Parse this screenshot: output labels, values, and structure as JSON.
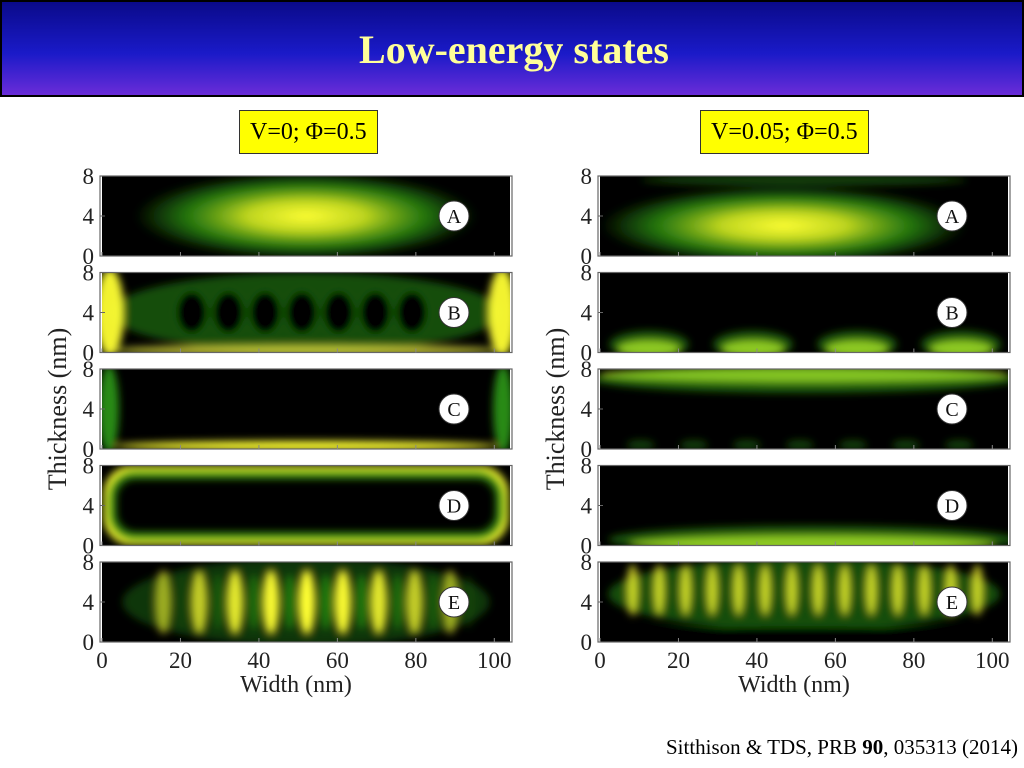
{
  "header": {
    "title": "Low-energy states"
  },
  "columns": [
    {
      "condition_label": "V=0; Φ=0.5",
      "y_axis_label": "Thickness (nm)",
      "x_axis_label": "Width (nm)",
      "x_ticks": [
        "0",
        "20",
        "40",
        "60",
        "80",
        "100"
      ],
      "y_ticks": [
        "0",
        "4",
        "8"
      ],
      "panels": [
        {
          "label": "A",
          "pattern": "central-blob"
        },
        {
          "label": "B",
          "pattern": "edges-with-lobes"
        },
        {
          "label": "C",
          "pattern": "bottom-line"
        },
        {
          "label": "D",
          "pattern": "ring-perimeter"
        },
        {
          "label": "E",
          "pattern": "vertical-stripes"
        }
      ]
    },
    {
      "condition_label": "V=0.05; Φ=0.5",
      "y_axis_label": "Thickness (nm)",
      "x_axis_label": "Width (nm)",
      "x_ticks": [
        "0",
        "20",
        "40",
        "60",
        "80",
        "100"
      ],
      "y_ticks": [
        "0",
        "4",
        "8"
      ],
      "panels": [
        {
          "label": "A",
          "pattern": "lower-blob"
        },
        {
          "label": "B",
          "pattern": "bottom-bumps"
        },
        {
          "label": "C",
          "pattern": "top-line"
        },
        {
          "label": "D",
          "pattern": "bottom-arc"
        },
        {
          "label": "E",
          "pattern": "dense-stripes"
        }
      ]
    }
  ],
  "citation": {
    "prefix": "Sitthison & TDS, PRB ",
    "volume": "90",
    "suffix": ", 035313 (2014)"
  },
  "colors": {
    "background": "#ffffff",
    "title_text": "#ffff99",
    "label_bg": "#ffff00",
    "map_low": "#000000",
    "map_mid": "#2e9a14",
    "map_high": "#ffff33"
  }
}
